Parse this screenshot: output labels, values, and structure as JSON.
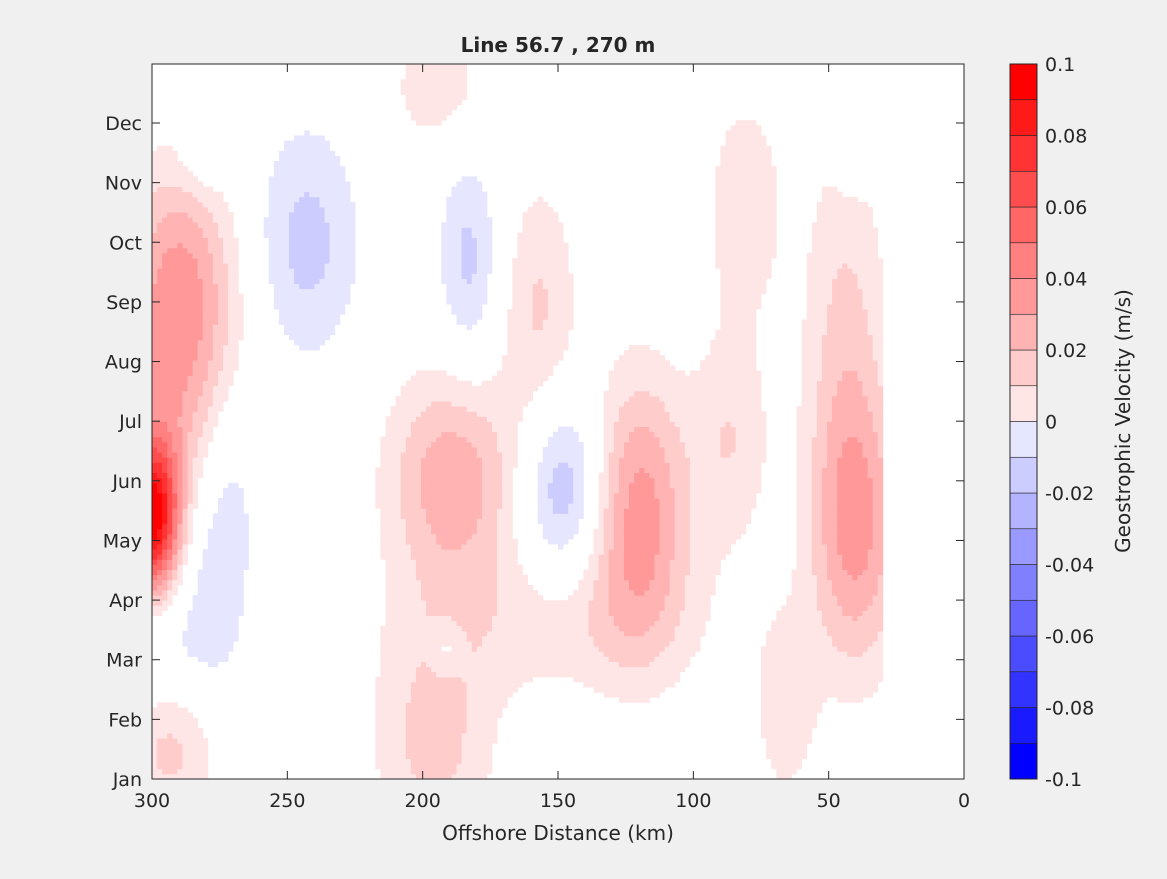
{
  "chart_data": {
    "type": "heatmap",
    "subtype": "filled-contour",
    "title": "Line 56.7 , 270 m",
    "xlabel": "Offshore Distance (km)",
    "ylabel": "",
    "xlim": [
      300,
      0
    ],
    "x_reversed": true,
    "x_ticks": [
      300,
      250,
      200,
      150,
      100,
      50,
      0
    ],
    "y_categories": [
      "Jan",
      "Feb",
      "Mar",
      "Apr",
      "May",
      "Jun",
      "Jul",
      "Aug",
      "Sep",
      "Oct",
      "Nov",
      "Dec"
    ],
    "colorbar": {
      "label": "Geostrophic Velocity (m/s)",
      "range": [
        -0.1,
        0.1
      ],
      "levels": [
        -0.1,
        -0.09,
        -0.08,
        -0.07,
        -0.06,
        -0.05,
        -0.04,
        -0.03,
        -0.02,
        -0.01,
        0,
        0.01,
        0.02,
        0.03,
        0.04,
        0.05,
        0.06,
        0.07,
        0.08,
        0.09,
        0.1
      ],
      "tick_labels": [
        "0.1",
        "0.08",
        "0.06",
        "0.04",
        "0.02",
        "0",
        "-0.02",
        "-0.04",
        "-0.06",
        "-0.08",
        "-0.1"
      ],
      "tick_values": [
        0.1,
        0.08,
        0.06,
        0.04,
        0.02,
        0,
        -0.02,
        -0.04,
        -0.06,
        -0.08,
        -0.1
      ],
      "colormap": "blue-white-red"
    },
    "features": [
      {
        "x": 300,
        "month": 5.4,
        "sx": 7,
        "sy": 0.9,
        "v": 0.1
      },
      {
        "x": 290,
        "month": 7.8,
        "sx": 16,
        "sy": 1.9,
        "v": 0.036
      },
      {
        "x": 290,
        "month": 9.6,
        "sx": 14,
        "sy": 1.3,
        "v": 0.022
      },
      {
        "x": 293,
        "month": 1.5,
        "sx": 13,
        "sy": 0.9,
        "v": 0.023
      },
      {
        "x": 278,
        "month": 4.1,
        "sx": 10,
        "sy": 1.4,
        "v": -0.017
      },
      {
        "x": 272,
        "month": 6.2,
        "sx": 9,
        "sy": 1.3,
        "v": -0.016
      },
      {
        "x": 300,
        "month": 3.2,
        "sx": 12,
        "sy": 0.7,
        "v": -0.013
      },
      {
        "x": 281,
        "month": 11.4,
        "sx": 6,
        "sy": 0.4,
        "v": -0.013
      },
      {
        "x": 243,
        "month": 10.0,
        "sx": 14,
        "sy": 1.4,
        "v": -0.024
      },
      {
        "x": 189,
        "month": 6.0,
        "sx": 17,
        "sy": 1.3,
        "v": 0.038
      },
      {
        "x": 196,
        "month": 1.6,
        "sx": 16,
        "sy": 1.3,
        "v": 0.024
      },
      {
        "x": 194,
        "month": 12.6,
        "sx": 14,
        "sy": 0.8,
        "v": 0.016
      },
      {
        "x": 183,
        "month": 9.7,
        "sx": 8,
        "sy": 1.3,
        "v": -0.023
      },
      {
        "x": 148,
        "month": 5.9,
        "sx": 11,
        "sy": 1.1,
        "v": -0.032
      },
      {
        "x": 157,
        "month": 8.9,
        "sx": 10,
        "sy": 1.5,
        "v": 0.021
      },
      {
        "x": 120,
        "month": 5.5,
        "sx": 13,
        "sy": 1.6,
        "v": 0.045
      },
      {
        "x": 150,
        "month": 3.6,
        "sx": 40,
        "sy": 0.9,
        "v": 0.015
      },
      {
        "x": 86,
        "month": 6.7,
        "sx": 10,
        "sy": 1.3,
        "v": 0.019
      },
      {
        "x": 81,
        "month": 10.6,
        "sx": 10,
        "sy": 1.3,
        "v": 0.019
      },
      {
        "x": 66,
        "month": 2.2,
        "sx": 8,
        "sy": 1.1,
        "v": 0.018
      },
      {
        "x": 40,
        "month": 5.2,
        "sx": 12,
        "sy": 1.7,
        "v": 0.042
      },
      {
        "x": 44,
        "month": 8.8,
        "sx": 11,
        "sy": 2.2,
        "v": 0.02
      },
      {
        "x": 42,
        "month": 11.7,
        "sx": 4,
        "sy": 0.6,
        "v": -0.013
      },
      {
        "x": 191,
        "month": 3.2,
        "sx": 4,
        "sy": 0.3,
        "v": -0.013
      }
    ]
  }
}
